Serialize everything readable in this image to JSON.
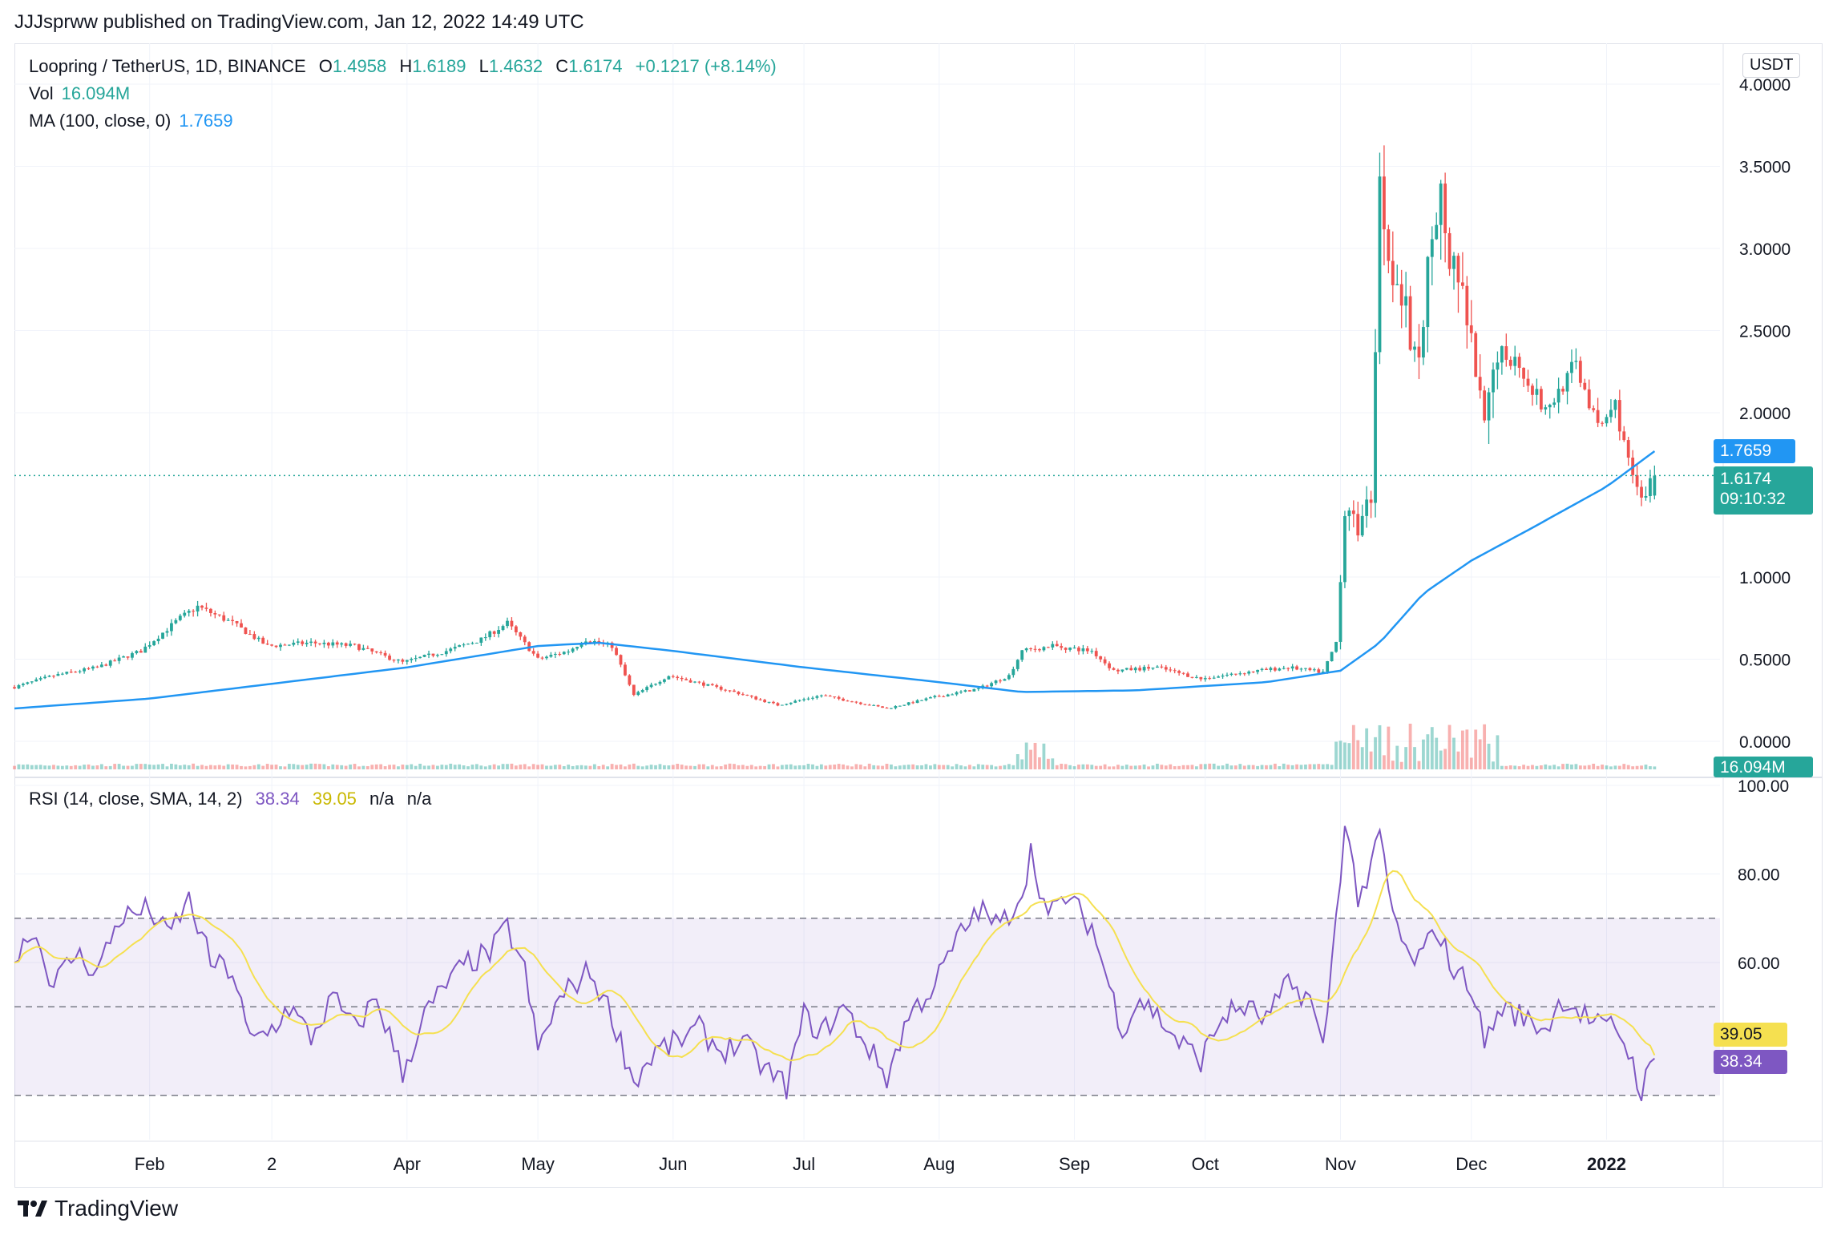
{
  "header": {
    "publisher": "JJJsprww published on TradingView.com, Jan 12, 2022 14:49 UTC"
  },
  "legend": {
    "symbol": "Loopring / TetherUS, 1D, BINANCE",
    "open_label": "O",
    "open": "1.4958",
    "high_label": "H",
    "high": "1.6189",
    "low_label": "L",
    "low": "1.4632",
    "close_label": "C",
    "close": "1.6174",
    "change": "+0.1217 (+8.14%)",
    "vol_label": "Vol",
    "vol": "16.094M",
    "ma_label": "MA (100, close, 0)",
    "ma": "1.7659",
    "rsi_label": "RSI (14, close, SMA, 14, 2)",
    "rsi": "38.34",
    "rsi_sma": "39.05",
    "na1": "n/a",
    "na2": "n/a"
  },
  "currency": "USDT",
  "tags": {
    "ma": "1.7659",
    "price": "1.6174",
    "countdown": "09:10:32",
    "volume": "16.094M",
    "rsi_sma": "39.05",
    "rsi": "38.34"
  },
  "colors": {
    "up": "#26a69a",
    "down": "#ef5350",
    "ma": "#2196f3",
    "rsi": "#7e57c2",
    "rsi_sma": "#f5e050",
    "band": "#7e57c2"
  },
  "footer": {
    "brand": "TradingView"
  },
  "chart_data": [
    {
      "type": "candlestick",
      "title": "Loopring / TetherUS, 1D, BINANCE",
      "ylim": [
        0,
        4.2
      ],
      "yticks": [
        "4.0000",
        "3.5000",
        "3.0000",
        "2.5000",
        "2.0000",
        "1.0000",
        "0.5000",
        "0.0000"
      ],
      "xticks": [
        "Feb",
        "2",
        "Apr",
        "May",
        "Jun",
        "Jul",
        "Aug",
        "Sep",
        "Oct",
        "Nov",
        "Dec",
        "2022"
      ],
      "price_anchors": [
        [
          "2021-01-01",
          0.33
        ],
        [
          "2021-01-10",
          0.4
        ],
        [
          "2021-01-20",
          0.45
        ],
        [
          "2021-01-30",
          0.55
        ],
        [
          "2021-02-08",
          0.75
        ],
        [
          "2021-02-12",
          0.82
        ],
        [
          "2021-02-20",
          0.72
        ],
        [
          "2021-02-28",
          0.58
        ],
        [
          "2021-03-10",
          0.6
        ],
        [
          "2021-03-20",
          0.58
        ],
        [
          "2021-03-31",
          0.48
        ],
        [
          "2021-04-10",
          0.55
        ],
        [
          "2021-04-18",
          0.62
        ],
        [
          "2021-04-24",
          0.72
        ],
        [
          "2021-05-01",
          0.5
        ],
        [
          "2021-05-08",
          0.55
        ],
        [
          "2021-05-12",
          0.62
        ],
        [
          "2021-05-18",
          0.58
        ],
        [
          "2021-05-23",
          0.28
        ],
        [
          "2021-05-31",
          0.4
        ],
        [
          "2021-06-15",
          0.3
        ],
        [
          "2021-06-25",
          0.22
        ],
        [
          "2021-07-05",
          0.28
        ],
        [
          "2021-07-20",
          0.2
        ],
        [
          "2021-07-31",
          0.27
        ],
        [
          "2021-08-10",
          0.32
        ],
        [
          "2021-08-17",
          0.4
        ],
        [
          "2021-08-20",
          0.55
        ],
        [
          "2021-08-27",
          0.58
        ],
        [
          "2021-09-05",
          0.55
        ],
        [
          "2021-09-10",
          0.43
        ],
        [
          "2021-09-20",
          0.45
        ],
        [
          "2021-09-30",
          0.38
        ],
        [
          "2021-10-10",
          0.42
        ],
        [
          "2021-10-20",
          0.45
        ],
        [
          "2021-10-28",
          0.42
        ],
        [
          "2021-10-31",
          0.6
        ],
        [
          "2021-11-02",
          1.4
        ],
        [
          "2021-11-05",
          1.3
        ],
        [
          "2021-11-08",
          1.5
        ],
        [
          "2021-11-09",
          2.4
        ],
        [
          "2021-11-10",
          3.4
        ],
        [
          "2021-11-12",
          3.0
        ],
        [
          "2021-11-14",
          2.8
        ],
        [
          "2021-11-16",
          2.6
        ],
        [
          "2021-11-18",
          2.3
        ],
        [
          "2021-11-20",
          2.5
        ],
        [
          "2021-11-22",
          3.2
        ],
        [
          "2021-11-24",
          3.3
        ],
        [
          "2021-11-26",
          2.9
        ],
        [
          "2021-11-29",
          2.7
        ],
        [
          "2021-12-01",
          2.4
        ],
        [
          "2021-12-04",
          1.9
        ],
        [
          "2021-12-07",
          2.4
        ],
        [
          "2021-12-12",
          2.3
        ],
        [
          "2021-12-18",
          2.0
        ],
        [
          "2021-12-25",
          2.3
        ],
        [
          "2021-12-30",
          1.9
        ],
        [
          "2022-01-03",
          2.05
        ],
        [
          "2022-01-06",
          1.7
        ],
        [
          "2022-01-09",
          1.45
        ],
        [
          "2022-01-12",
          1.62
        ]
      ],
      "ma100_anchors": [
        [
          "2021-01-01",
          0.2
        ],
        [
          "2021-02-01",
          0.26
        ],
        [
          "2021-03-01",
          0.35
        ],
        [
          "2021-04-01",
          0.45
        ],
        [
          "2021-05-01",
          0.58
        ],
        [
          "2021-05-15",
          0.6
        ],
        [
          "2021-06-01",
          0.55
        ],
        [
          "2021-07-01",
          0.45
        ],
        [
          "2021-08-01",
          0.36
        ],
        [
          "2021-08-20",
          0.3
        ],
        [
          "2021-09-15",
          0.31
        ],
        [
          "2021-10-15",
          0.36
        ],
        [
          "2021-11-01",
          0.43
        ],
        [
          "2021-11-10",
          0.6
        ],
        [
          "2021-11-20",
          0.9
        ],
        [
          "2021-12-01",
          1.1
        ],
        [
          "2021-12-15",
          1.3
        ],
        [
          "2022-01-01",
          1.55
        ],
        [
          "2022-01-12",
          1.7659
        ]
      ]
    },
    {
      "type": "line",
      "title": "RSI (14, close, SMA, 14, 2)",
      "ylim": [
        20,
        100
      ],
      "yticks": [
        "100.00",
        "80.00",
        "60.00"
      ],
      "band": [
        30,
        70
      ],
      "midline": 50,
      "rsi_anchors": [
        [
          "2021-01-01",
          60
        ],
        [
          "2021-01-05",
          68
        ],
        [
          "2021-01-10",
          55
        ],
        [
          "2021-01-15",
          62
        ],
        [
          "2021-01-20",
          58
        ],
        [
          "2021-01-25",
          70
        ],
        [
          "2021-02-01",
          72
        ],
        [
          "2021-02-05",
          66
        ],
        [
          "2021-02-10",
          74
        ],
        [
          "2021-02-15",
          60
        ],
        [
          "2021-02-20",
          58
        ],
        [
          "2021-02-24",
          42
        ],
        [
          "2021-03-01",
          45
        ],
        [
          "2021-03-05",
          50
        ],
        [
          "2021-03-10",
          43
        ],
        [
          "2021-03-15",
          52
        ],
        [
          "2021-03-20",
          45
        ],
        [
          "2021-03-25",
          52
        ],
        [
          "2021-03-31",
          35
        ],
        [
          "2021-04-05",
          48
        ],
        [
          "2021-04-10",
          55
        ],
        [
          "2021-04-15",
          60
        ],
        [
          "2021-04-20",
          62
        ],
        [
          "2021-04-24",
          68
        ],
        [
          "2021-04-28",
          58
        ],
        [
          "2021-05-01",
          40
        ],
        [
          "2021-05-05",
          50
        ],
        [
          "2021-05-09",
          55
        ],
        [
          "2021-05-13",
          58
        ],
        [
          "2021-05-18",
          48
        ],
        [
          "2021-05-23",
          33
        ],
        [
          "2021-05-28",
          40
        ],
        [
          "2021-06-02",
          42
        ],
        [
          "2021-06-07",
          45
        ],
        [
          "2021-06-12",
          40
        ],
        [
          "2021-06-17",
          42
        ],
        [
          "2021-06-22",
          36
        ],
        [
          "2021-06-27",
          32
        ],
        [
          "2021-07-01",
          48
        ],
        [
          "2021-07-05",
          44
        ],
        [
          "2021-07-10",
          50
        ],
        [
          "2021-07-15",
          42
        ],
        [
          "2021-07-20",
          34
        ],
        [
          "2021-07-25",
          48
        ],
        [
          "2021-07-31",
          55
        ],
        [
          "2021-08-05",
          65
        ],
        [
          "2021-08-10",
          72
        ],
        [
          "2021-08-15",
          68
        ],
        [
          "2021-08-20",
          76
        ],
        [
          "2021-08-22",
          85
        ],
        [
          "2021-08-26",
          70
        ],
        [
          "2021-08-30",
          75
        ],
        [
          "2021-09-05",
          68
        ],
        [
          "2021-09-08",
          58
        ],
        [
          "2021-09-12",
          45
        ],
        [
          "2021-09-16",
          52
        ],
        [
          "2021-09-20",
          48
        ],
        [
          "2021-09-25",
          42
        ],
        [
          "2021-09-30",
          38
        ],
        [
          "2021-10-05",
          48
        ],
        [
          "2021-10-10",
          50
        ],
        [
          "2021-10-15",
          47
        ],
        [
          "2021-10-20",
          55
        ],
        [
          "2021-10-25",
          52
        ],
        [
          "2021-10-28",
          40
        ],
        [
          "2021-10-31",
          70
        ],
        [
          "2021-11-02",
          92
        ],
        [
          "2021-11-05",
          75
        ],
        [
          "2021-11-08",
          80
        ],
        [
          "2021-11-10",
          90
        ],
        [
          "2021-11-12",
          75
        ],
        [
          "2021-11-14",
          68
        ],
        [
          "2021-11-17",
          60
        ],
        [
          "2021-11-20",
          62
        ],
        [
          "2021-11-23",
          68
        ],
        [
          "2021-11-27",
          58
        ],
        [
          "2021-12-01",
          55
        ],
        [
          "2021-12-04",
          42
        ],
        [
          "2021-12-08",
          50
        ],
        [
          "2021-12-12",
          48
        ],
        [
          "2021-12-18",
          45
        ],
        [
          "2021-12-22",
          52
        ],
        [
          "2021-12-27",
          48
        ],
        [
          "2021-12-31",
          45
        ],
        [
          "2022-01-03",
          46
        ],
        [
          "2022-01-06",
          40
        ],
        [
          "2022-01-09",
          31
        ],
        [
          "2022-01-12",
          38.34
        ]
      ]
    }
  ]
}
